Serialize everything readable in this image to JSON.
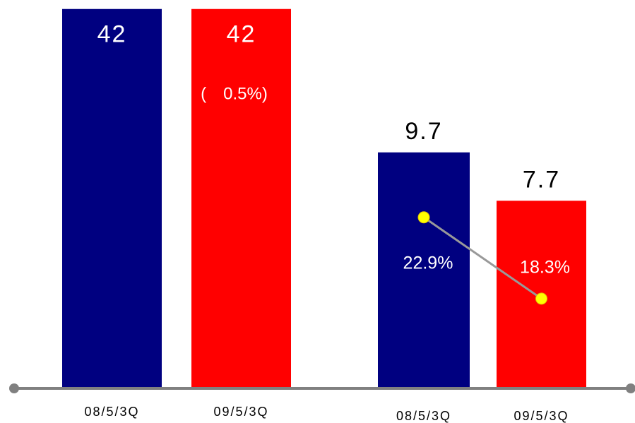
{
  "chart_data": [
    {
      "type": "bar",
      "categories": [
        "08/5/3Q",
        "09/5/3Q"
      ],
      "values": [
        42,
        42
      ],
      "value_labels": [
        "42",
        "42"
      ],
      "colors": [
        "#000080",
        "#ff0000"
      ],
      "ylim": [
        0,
        43
      ],
      "annotation": "(　0.5%)"
    },
    {
      "type": "bar",
      "categories": [
        "08/5/3Q",
        "09/5/3Q"
      ],
      "values": [
        9.7,
        7.7
      ],
      "value_labels": [
        "9.7",
        "7.7"
      ],
      "colors": [
        "#000080",
        "#ff0000"
      ],
      "ylim": [
        0,
        16
      ],
      "line": {
        "values": [
          22.9,
          18.3
        ],
        "value_labels": [
          "22.9%",
          "18.3%"
        ],
        "color": "#999999",
        "marker_color": "#ffff00",
        "axis": "y2"
      },
      "y2lim": [
        13.3,
        35.2
      ]
    }
  ]
}
